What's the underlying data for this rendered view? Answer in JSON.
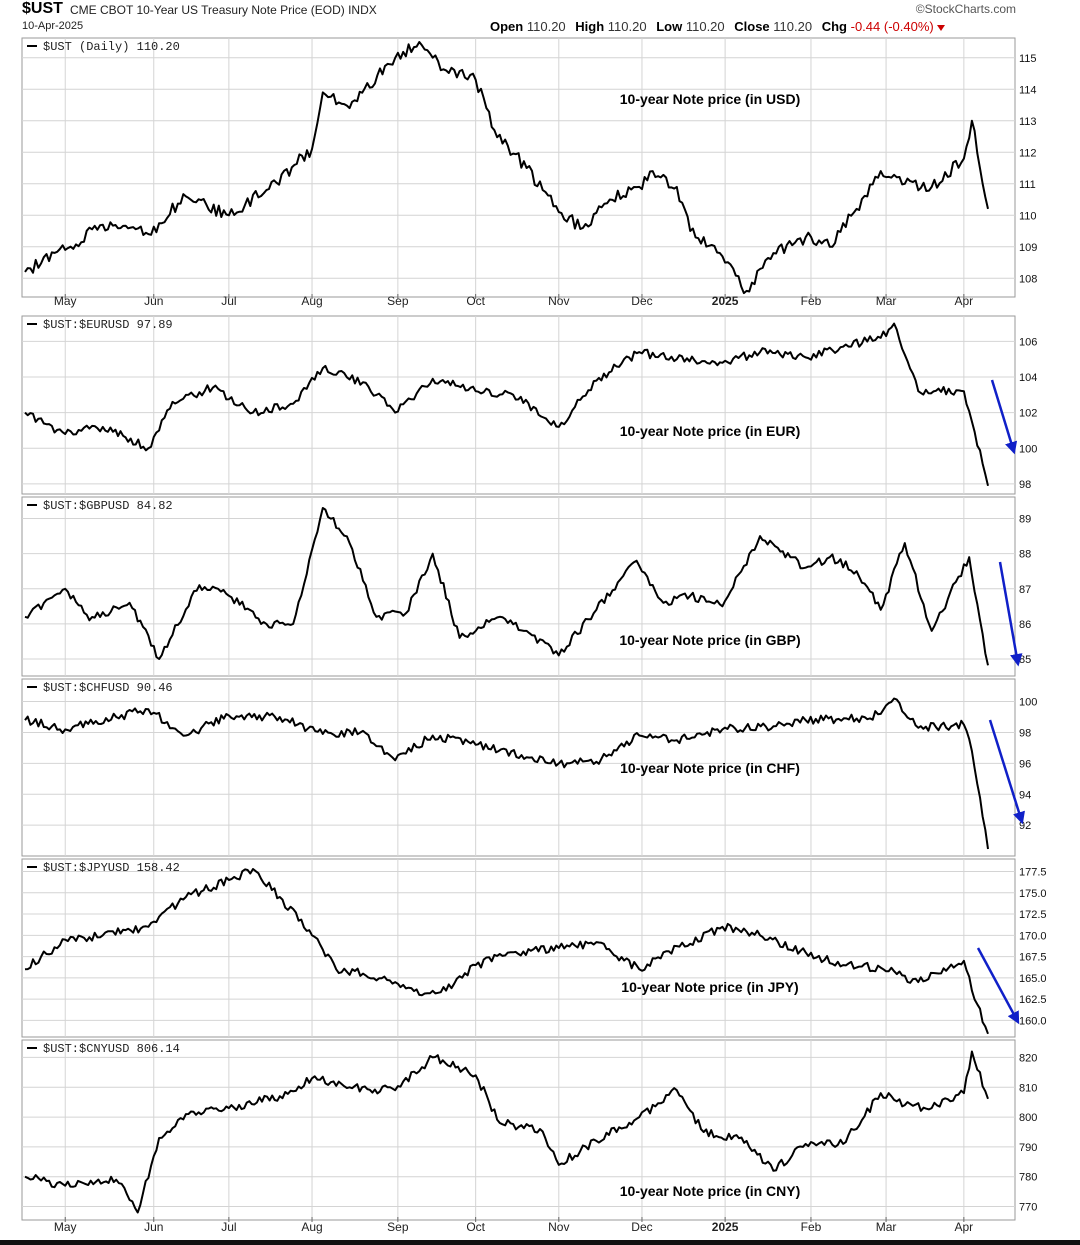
{
  "header": {
    "symbol": "$UST",
    "description": "CME CBOT 10-Year US Treasury Note Price (EOD) INDX",
    "date": "10-Apr-2025",
    "brand": "©StockCharts.com",
    "open_label": "Open",
    "open": "110.20",
    "high_label": "High",
    "high": "110.20",
    "low_label": "Low",
    "low": "110.20",
    "close_label": "Close",
    "close": "110.20",
    "chg_label": "Chg",
    "chg": "-0.44 (-0.40%)"
  },
  "chart_data": [
    {
      "type": "line",
      "legend": "$UST (Daily) 110.20",
      "annotation": "10-year Note price (in USD)",
      "ylim": [
        107.5,
        115.5
      ],
      "yticks": [
        "108",
        "109",
        "110",
        "111",
        "112",
        "113",
        "114",
        "115"
      ],
      "x": [
        "2024-04-16",
        "2024-05-01",
        "2024-05-15",
        "2024-06-01",
        "2024-06-15",
        "2024-07-01",
        "2024-07-15",
        "2024-08-01",
        "2024-08-05",
        "2024-08-15",
        "2024-09-01",
        "2024-09-10",
        "2024-09-20",
        "2024-10-01",
        "2024-10-08",
        "2024-10-20",
        "2024-11-01",
        "2024-11-10",
        "2024-11-20",
        "2024-12-01",
        "2024-12-06",
        "2024-12-15",
        "2024-12-20",
        "2025-01-01",
        "2025-01-10",
        "2025-01-20",
        "2025-02-01",
        "2025-02-10",
        "2025-02-20",
        "2025-03-01",
        "2025-03-10",
        "2025-03-20",
        "2025-04-01",
        "2025-04-04",
        "2025-04-10"
      ],
      "values": [
        108.2,
        108.9,
        109.7,
        109.4,
        110.6,
        110.0,
        110.8,
        112.1,
        113.9,
        113.4,
        115.0,
        115.5,
        114.6,
        114.3,
        112.7,
        111.5,
        110.1,
        109.6,
        110.5,
        110.9,
        111.4,
        110.9,
        109.5,
        108.7,
        107.6,
        108.8,
        109.3,
        109.0,
        110.2,
        111.4,
        111.0,
        110.9,
        111.8,
        113.0,
        110.2
      ]
    },
    {
      "type": "line",
      "legend": "$UST:$EURUSD 97.89",
      "annotation": "10-year Note price (in EUR)",
      "ylim": [
        97.6,
        107.2
      ],
      "yticks": [
        "98",
        "100",
        "102",
        "104",
        "106"
      ],
      "x": [
        "2024-04-16",
        "2024-05-01",
        "2024-05-15",
        "2024-06-01",
        "2024-06-10",
        "2024-06-25",
        "2024-07-10",
        "2024-07-25",
        "2024-08-05",
        "2024-08-20",
        "2024-09-01",
        "2024-09-15",
        "2024-10-01",
        "2024-10-15",
        "2024-11-01",
        "2024-11-15",
        "2024-12-01",
        "2024-12-15",
        "2025-01-01",
        "2025-01-15",
        "2025-02-01",
        "2025-02-15",
        "2025-03-01",
        "2025-03-06",
        "2025-03-15",
        "2025-04-01",
        "2025-04-04",
        "2025-04-10"
      ],
      "values": [
        102.0,
        100.8,
        101.2,
        100.0,
        102.6,
        103.4,
        102.0,
        102.5,
        104.5,
        103.7,
        102.0,
        103.9,
        103.2,
        103.0,
        101.2,
        103.8,
        105.4,
        105.0,
        104.8,
        105.4,
        105.1,
        105.7,
        106.2,
        107.0,
        103.2,
        103.2,
        101.5,
        97.89
      ]
    },
    {
      "type": "line",
      "legend": "$UST:$GBPUSD 84.82",
      "annotation": "10-year Note price (in GBP)",
      "ylim": [
        84.6,
        89.5
      ],
      "yticks": [
        "85",
        "86",
        "87",
        "88",
        "89"
      ],
      "x": [
        "2024-04-16",
        "2024-05-01",
        "2024-05-10",
        "2024-05-25",
        "2024-06-05",
        "2024-06-20",
        "2024-07-01",
        "2024-07-15",
        "2024-07-25",
        "2024-08-05",
        "2024-08-15",
        "2024-08-25",
        "2024-09-05",
        "2024-09-15",
        "2024-09-25",
        "2024-10-10",
        "2024-10-20",
        "2024-11-01",
        "2024-11-15",
        "2024-11-30",
        "2024-12-10",
        "2024-12-20",
        "2025-01-01",
        "2025-01-15",
        "2025-02-01",
        "2025-02-10",
        "2025-02-20",
        "2025-03-01",
        "2025-03-10",
        "2025-03-20",
        "2025-04-03",
        "2025-04-10"
      ],
      "values": [
        86.2,
        87.0,
        86.1,
        86.6,
        85.0,
        87.1,
        86.8,
        86.0,
        86.0,
        89.3,
        88.3,
        86.2,
        86.3,
        88.0,
        85.6,
        86.2,
        85.8,
        85.1,
        86.4,
        87.8,
        86.6,
        86.8,
        86.5,
        88.5,
        87.6,
        87.9,
        87.5,
        86.4,
        88.3,
        85.8,
        87.9,
        84.82
      ]
    },
    {
      "type": "line",
      "legend": "$UST:$CHFUSD 90.46",
      "annotation": "10-year Note price (in CHF)",
      "ylim": [
        90.2,
        101.2
      ],
      "yticks": [
        "92",
        "94",
        "96",
        "98",
        "100"
      ],
      "x": [
        "2024-04-16",
        "2024-05-01",
        "2024-05-20",
        "2024-06-01",
        "2024-06-15",
        "2024-07-01",
        "2024-07-20",
        "2024-08-05",
        "2024-08-20",
        "2024-09-01",
        "2024-09-15",
        "2024-10-01",
        "2024-10-20",
        "2024-11-01",
        "2024-11-15",
        "2024-12-01",
        "2024-12-15",
        "2025-01-01",
        "2025-01-20",
        "2025-02-01",
        "2025-02-20",
        "2025-03-01",
        "2025-03-06",
        "2025-03-15",
        "2025-04-01",
        "2025-04-04",
        "2025-04-07",
        "2025-04-10"
      ],
      "values": [
        98.8,
        98.2,
        99.0,
        99.5,
        97.8,
        99.1,
        99.0,
        97.9,
        98.1,
        96.2,
        97.8,
        97.2,
        96.4,
        96.0,
        96.1,
        97.8,
        97.5,
        98.2,
        98.4,
        98.8,
        98.9,
        99.2,
        100.2,
        98.3,
        98.5,
        96.8,
        93.8,
        90.46
      ]
    },
    {
      "type": "line",
      "legend": "$UST:$JPYUSD 158.42",
      "annotation": "10-year Note price (in JPY)",
      "ylim": [
        158.4,
        178.5
      ],
      "yticks": [
        "160.0",
        "162.5",
        "165.0",
        "167.5",
        "170.0",
        "172.5",
        "175.0",
        "177.5"
      ],
      "x": [
        "2024-04-16",
        "2024-05-01",
        "2024-05-15",
        "2024-06-01",
        "2024-06-15",
        "2024-07-01",
        "2024-07-10",
        "2024-07-20",
        "2024-08-01",
        "2024-08-10",
        "2024-08-20",
        "2024-09-01",
        "2024-09-10",
        "2024-09-20",
        "2024-10-01",
        "2024-10-15",
        "2024-11-01",
        "2024-11-15",
        "2024-12-01",
        "2024-12-10",
        "2024-12-20",
        "2025-01-01",
        "2025-01-15",
        "2025-02-01",
        "2025-02-15",
        "2025-03-01",
        "2025-03-15",
        "2025-04-01",
        "2025-04-04",
        "2025-04-10"
      ],
      "values": [
        166.0,
        169.5,
        170.0,
        171.0,
        174.5,
        176.5,
        177.8,
        174.5,
        170.0,
        166.0,
        165.5,
        164.5,
        163.0,
        163.5,
        166.5,
        168.0,
        168.5,
        169.2,
        166.0,
        168.0,
        169.0,
        171.0,
        170.0,
        168.0,
        166.5,
        166.2,
        164.5,
        167.0,
        163.5,
        158.42
      ]
    },
    {
      "type": "line",
      "legend": "$UST:$CNYUSD 806.14",
      "annotation": "10-year Note price (in CNY)",
      "ylim": [
        766.5,
        824.5
      ],
      "yticks": [
        "770",
        "780",
        "790",
        "800",
        "810",
        "820"
      ],
      "x": [
        "2024-04-16",
        "2024-05-01",
        "2024-05-20",
        "2024-05-28",
        "2024-06-05",
        "2024-06-15",
        "2024-07-01",
        "2024-07-20",
        "2024-08-01",
        "2024-08-15",
        "2024-09-01",
        "2024-09-15",
        "2024-10-01",
        "2024-10-10",
        "2024-10-25",
        "2024-11-01",
        "2024-11-15",
        "2024-12-01",
        "2024-12-15",
        "2024-12-25",
        "2025-01-10",
        "2025-01-20",
        "2025-02-01",
        "2025-02-15",
        "2025-03-01",
        "2025-03-10",
        "2025-03-20",
        "2025-04-01",
        "2025-04-04",
        "2025-04-10"
      ],
      "values": [
        780.0,
        777.0,
        779.0,
        768.0,
        793.0,
        801.0,
        803.0,
        807.0,
        813.0,
        810.0,
        809.0,
        820.0,
        814.0,
        798.0,
        796.0,
        784.0,
        792.0,
        800.0,
        809.0,
        795.0,
        792.0,
        782.0,
        791.0,
        791.0,
        808.0,
        804.0,
        803.0,
        808.0,
        822.0,
        806.14
      ]
    }
  ],
  "x_axis": {
    "labels": [
      "May",
      "Jun",
      "Jul",
      "Aug",
      "Sep",
      "Oct",
      "Nov",
      "Dec",
      "2025",
      "Feb",
      "Mar",
      "Apr"
    ],
    "dates": [
      "2024-05-01",
      "2024-06-03",
      "2024-07-01",
      "2024-08-01",
      "2024-09-02",
      "2024-10-01",
      "2024-11-01",
      "2024-12-02",
      "2025-01-02",
      "2025-02-03",
      "2025-03-03",
      "2025-04-01"
    ]
  },
  "colors": {
    "line": "#000000",
    "grid": "#d4d4d4",
    "arrow": "#1020c8",
    "down": "#cc0000"
  }
}
